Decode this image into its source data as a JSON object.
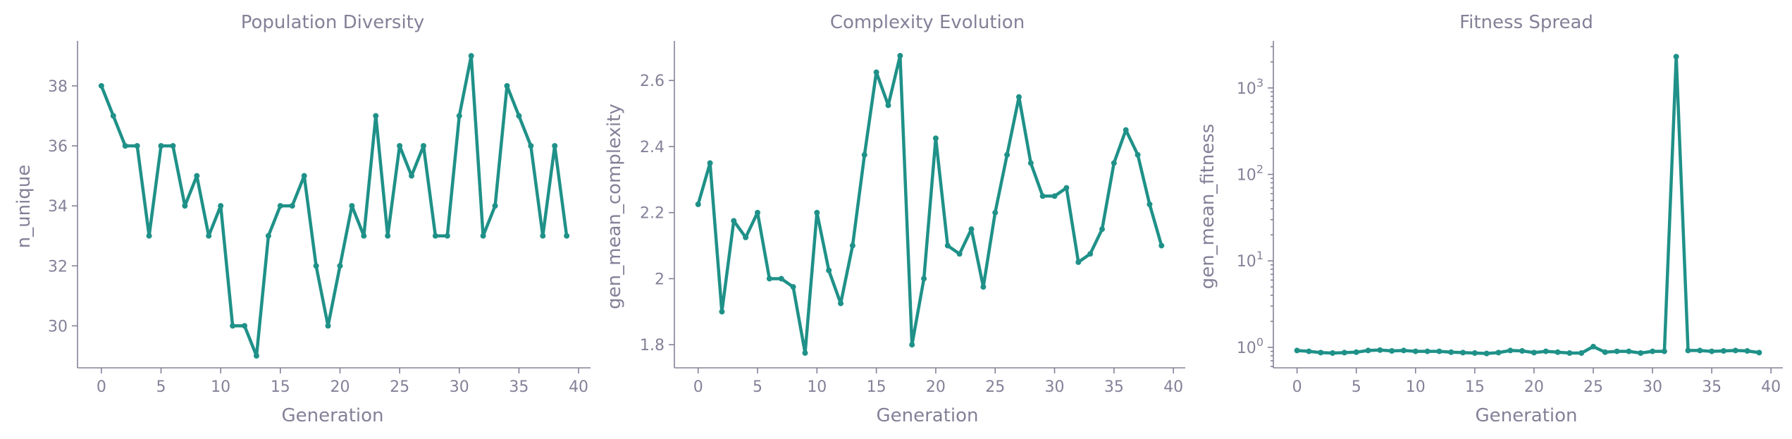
{
  "colors": {
    "series": "#1f9188",
    "text": "#858098",
    "axis": "#858098"
  },
  "chart_data": [
    {
      "type": "line",
      "title": "Population Diversity",
      "xlabel": "Generation",
      "ylabel": "n_unique",
      "xlim": [
        -2,
        41
      ],
      "ylim": [
        28.6,
        39.5
      ],
      "xticks": [
        0,
        5,
        10,
        15,
        20,
        25,
        30,
        35,
        40
      ],
      "yticks": [
        30,
        32,
        34,
        36,
        38
      ],
      "yscale": "linear",
      "grid": false,
      "series": [
        {
          "x": [
            0,
            1,
            2,
            3,
            4,
            5,
            6,
            7,
            8,
            9,
            10,
            11,
            12,
            13,
            14,
            15,
            16,
            17,
            18,
            19,
            20,
            21,
            22,
            23,
            24,
            25,
            26,
            27,
            28,
            29,
            30,
            31,
            32,
            33,
            34,
            35,
            36,
            37,
            38,
            39
          ],
          "values": [
            38,
            37,
            36,
            36,
            33,
            36,
            36,
            34,
            35,
            33,
            34,
            30,
            30,
            29,
            33,
            34,
            34,
            35,
            32,
            30,
            32,
            34,
            33,
            37,
            33,
            36,
            35,
            36,
            33,
            33,
            37,
            39,
            33,
            34,
            38,
            37,
            36,
            33,
            36,
            33
          ]
        }
      ]
    },
    {
      "type": "line",
      "title": "Complexity Evolution",
      "xlabel": "Generation",
      "ylabel": "gen_mean_complexity",
      "xlim": [
        -2,
        41
      ],
      "ylim": [
        1.73,
        2.72
      ],
      "xticks": [
        0,
        5,
        10,
        15,
        20,
        25,
        30,
        35,
        40
      ],
      "yticks": [
        1.8,
        2.0,
        2.2,
        2.4,
        2.6
      ],
      "yscale": "linear",
      "grid": false,
      "series": [
        {
          "x": [
            0,
            1,
            2,
            3,
            4,
            5,
            6,
            7,
            8,
            9,
            10,
            11,
            12,
            13,
            14,
            15,
            16,
            17,
            18,
            19,
            20,
            21,
            22,
            23,
            24,
            25,
            26,
            27,
            28,
            29,
            30,
            31,
            32,
            33,
            34,
            35,
            36,
            37,
            38,
            39
          ],
          "values": [
            2.225,
            2.35,
            1.9,
            2.175,
            2.125,
            2.2,
            2.0,
            2.0,
            1.975,
            1.775,
            2.2,
            2.025,
            1.925,
            2.1,
            2.375,
            2.625,
            2.525,
            2.675,
            1.8,
            2.0,
            2.425,
            2.1,
            2.075,
            2.15,
            1.975,
            2.2,
            2.375,
            2.55,
            2.35,
            2.25,
            2.25,
            2.275,
            2.05,
            2.075,
            2.15,
            2.35,
            2.45,
            2.375,
            2.225,
            2.1
          ]
        }
      ]
    },
    {
      "type": "line",
      "title": "Fitness Spread",
      "xlabel": "Generation",
      "ylabel": "gen_mean_fitness",
      "xlim": [
        -2,
        41
      ],
      "ylim": [
        0.58,
        3500
      ],
      "xticks": [
        0,
        5,
        10,
        15,
        20,
        25,
        30,
        35,
        40
      ],
      "yticks": [
        1,
        10,
        100,
        1000
      ],
      "ytick_labels": [
        {
          "base": "10",
          "exp": "0"
        },
        {
          "base": "10",
          "exp": "1"
        },
        {
          "base": "10",
          "exp": "2"
        },
        {
          "base": "10",
          "exp": "3"
        }
      ],
      "yscale": "log",
      "grid": false,
      "series": [
        {
          "x": [
            0,
            1,
            2,
            3,
            4,
            5,
            6,
            7,
            8,
            9,
            10,
            11,
            12,
            13,
            14,
            15,
            16,
            17,
            18,
            19,
            20,
            21,
            22,
            23,
            24,
            25,
            26,
            27,
            28,
            29,
            30,
            31,
            32,
            33,
            34,
            35,
            36,
            37,
            38,
            39
          ],
          "values": [
            0.92,
            0.9,
            0.87,
            0.86,
            0.87,
            0.88,
            0.92,
            0.93,
            0.91,
            0.92,
            0.9,
            0.9,
            0.9,
            0.88,
            0.87,
            0.86,
            0.85,
            0.87,
            0.92,
            0.91,
            0.87,
            0.9,
            0.88,
            0.86,
            0.86,
            1.02,
            0.88,
            0.9,
            0.9,
            0.86,
            0.9,
            0.9,
            2300,
            0.92,
            0.92,
            0.9,
            0.91,
            0.92,
            0.91,
            0.87
          ]
        }
      ]
    }
  ]
}
